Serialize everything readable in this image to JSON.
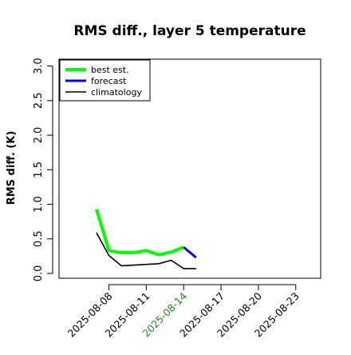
{
  "chart_data": {
    "type": "line",
    "title": "RMS diff., layer 5 temperature",
    "xlabel": "",
    "ylabel": "RMS diff. (K)",
    "ylim": [
      -0.07,
      3.1
    ],
    "xlim": [
      "2025-08-04",
      "2025-08-25"
    ],
    "y_ticks": [
      "0.0",
      "0.5",
      "1.0",
      "1.5",
      "2.0",
      "2.5",
      "3.0"
    ],
    "x_ticks": [
      "2025-08-08",
      "2025-08-11",
      "2025-08-14",
      "2025-08-17",
      "2025-08-20",
      "2025-08-23"
    ],
    "highlight_tick": "2025-08-14",
    "highlight_color": "#228b22",
    "grid": false,
    "legend_position": "top-left",
    "series": [
      {
        "name": "best est.",
        "color": "#00ff00",
        "x": [
          "2025-08-07",
          "2025-08-08",
          "2025-08-09",
          "2025-08-10",
          "2025-08-11",
          "2025-08-12",
          "2025-08-13",
          "2025-08-14"
        ],
        "values": [
          0.93,
          0.33,
          0.3,
          0.3,
          0.33,
          0.27,
          0.31,
          0.38
        ]
      },
      {
        "name": "forecast",
        "color": "#0000ff",
        "x": [
          "2025-08-14",
          "2025-08-15"
        ],
        "values": [
          0.38,
          0.23
        ]
      },
      {
        "name": "climatology",
        "color": "#000000",
        "x": [
          "2025-08-07",
          "2025-08-08",
          "2025-08-09",
          "2025-08-10",
          "2025-08-11",
          "2025-08-12",
          "2025-08-13",
          "2025-08-14",
          "2025-08-15"
        ],
        "values": [
          0.59,
          0.26,
          0.11,
          0.12,
          0.13,
          0.14,
          0.19,
          0.07,
          0.07
        ]
      }
    ]
  }
}
